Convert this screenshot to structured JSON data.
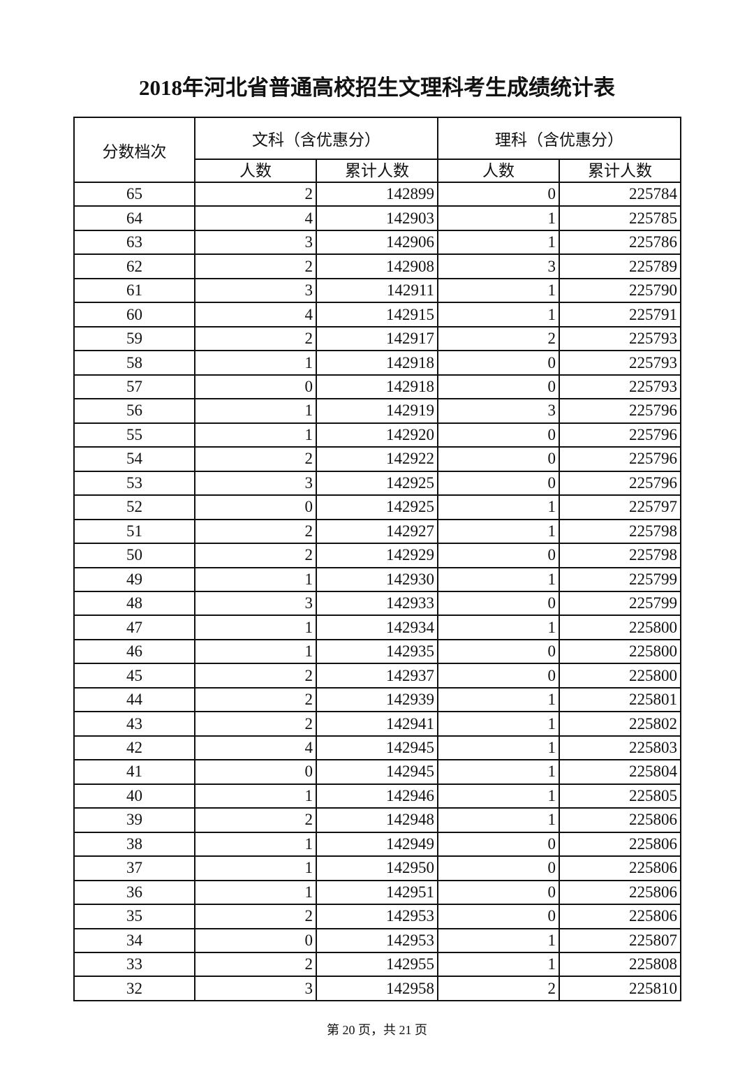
{
  "title": "2018年河北省普通高校招生文理科考生成绩统计表",
  "headers": {
    "score": "分数档次",
    "wenke": "文科（含优惠分）",
    "like": "理科（含优惠分）",
    "count": "人数",
    "cumulative": "累计人数"
  },
  "rows": [
    [
      "65",
      "2",
      "142899",
      "0",
      "225784"
    ],
    [
      "64",
      "4",
      "142903",
      "1",
      "225785"
    ],
    [
      "63",
      "3",
      "142906",
      "1",
      "225786"
    ],
    [
      "62",
      "2",
      "142908",
      "3",
      "225789"
    ],
    [
      "61",
      "3",
      "142911",
      "1",
      "225790"
    ],
    [
      "60",
      "4",
      "142915",
      "1",
      "225791"
    ],
    [
      "59",
      "2",
      "142917",
      "2",
      "225793"
    ],
    [
      "58",
      "1",
      "142918",
      "0",
      "225793"
    ],
    [
      "57",
      "0",
      "142918",
      "0",
      "225793"
    ],
    [
      "56",
      "1",
      "142919",
      "3",
      "225796"
    ],
    [
      "55",
      "1",
      "142920",
      "0",
      "225796"
    ],
    [
      "54",
      "2",
      "142922",
      "0",
      "225796"
    ],
    [
      "53",
      "3",
      "142925",
      "0",
      "225796"
    ],
    [
      "52",
      "0",
      "142925",
      "1",
      "225797"
    ],
    [
      "51",
      "2",
      "142927",
      "1",
      "225798"
    ],
    [
      "50",
      "2",
      "142929",
      "0",
      "225798"
    ],
    [
      "49",
      "1",
      "142930",
      "1",
      "225799"
    ],
    [
      "48",
      "3",
      "142933",
      "0",
      "225799"
    ],
    [
      "47",
      "1",
      "142934",
      "1",
      "225800"
    ],
    [
      "46",
      "1",
      "142935",
      "0",
      "225800"
    ],
    [
      "45",
      "2",
      "142937",
      "0",
      "225800"
    ],
    [
      "44",
      "2",
      "142939",
      "1",
      "225801"
    ],
    [
      "43",
      "2",
      "142941",
      "1",
      "225802"
    ],
    [
      "42",
      "4",
      "142945",
      "1",
      "225803"
    ],
    [
      "41",
      "0",
      "142945",
      "1",
      "225804"
    ],
    [
      "40",
      "1",
      "142946",
      "1",
      "225805"
    ],
    [
      "39",
      "2",
      "142948",
      "1",
      "225806"
    ],
    [
      "38",
      "1",
      "142949",
      "0",
      "225806"
    ],
    [
      "37",
      "1",
      "142950",
      "0",
      "225806"
    ],
    [
      "36",
      "1",
      "142951",
      "0",
      "225806"
    ],
    [
      "35",
      "2",
      "142953",
      "0",
      "225806"
    ],
    [
      "34",
      "0",
      "142953",
      "1",
      "225807"
    ],
    [
      "33",
      "2",
      "142955",
      "1",
      "225808"
    ],
    [
      "32",
      "3",
      "142958",
      "2",
      "225810"
    ]
  ],
  "footer": "第 20 页，共 21 页"
}
